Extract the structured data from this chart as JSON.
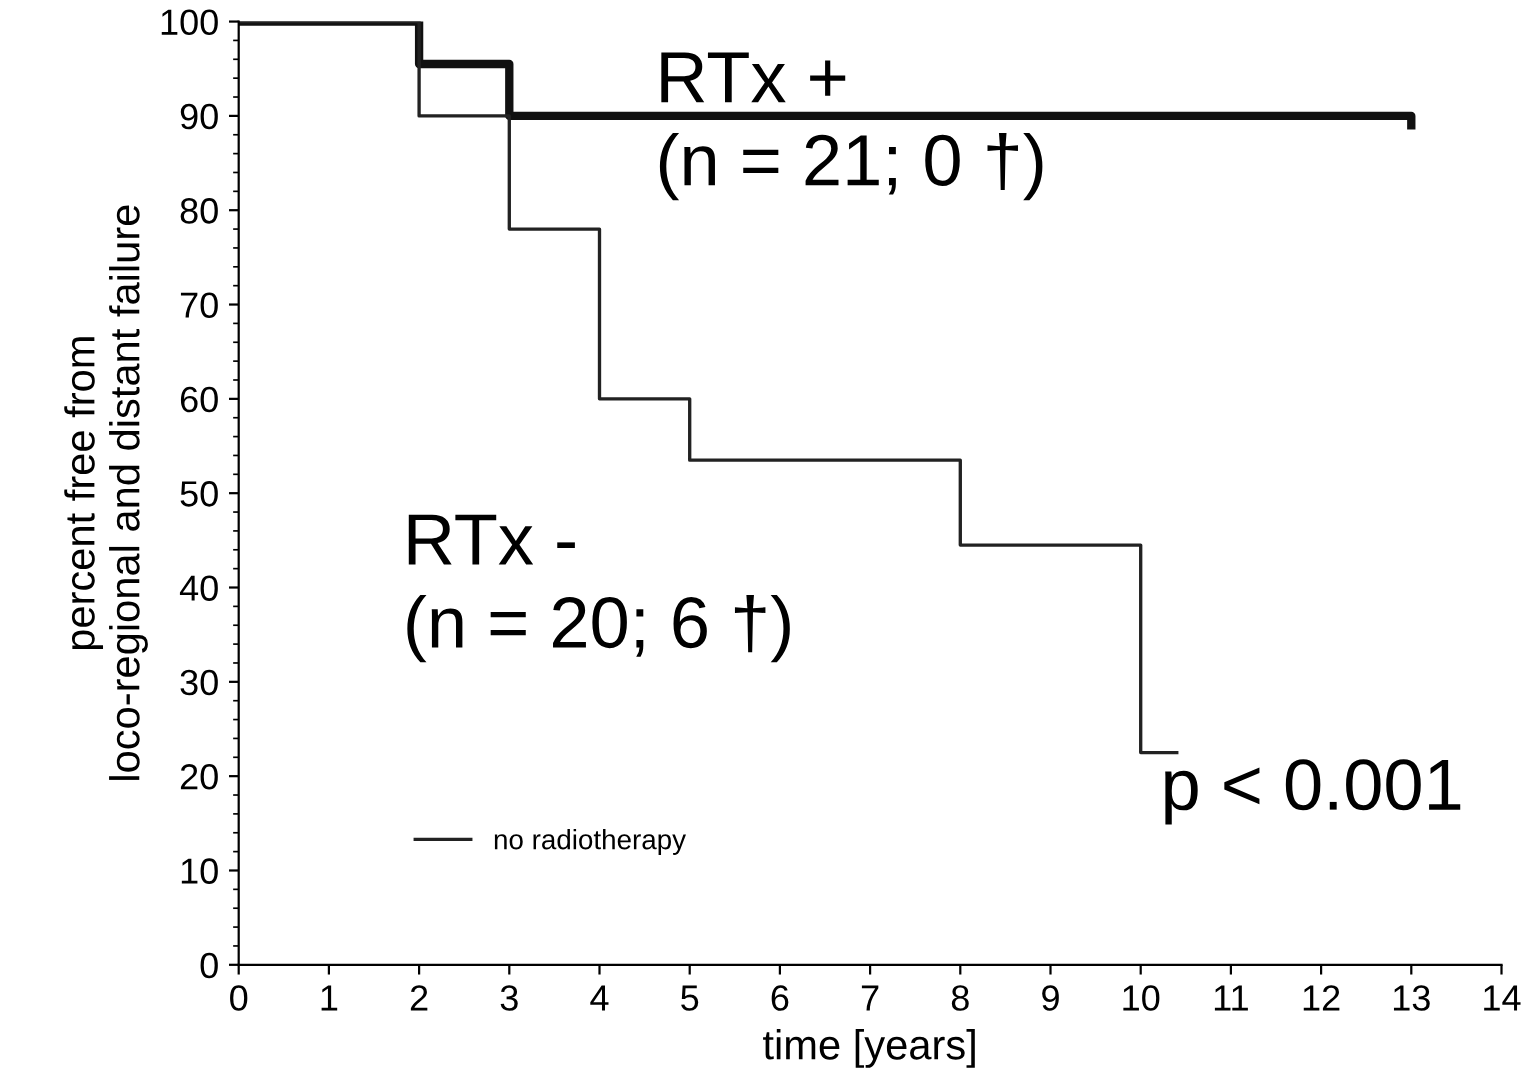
{
  "chart_data": {
    "type": "step",
    "xlabel": "time [years]",
    "ylabel": "percent free from\nloco-regional and distant failure",
    "xlim": [
      0,
      14
    ],
    "ylim": [
      0,
      100
    ],
    "xticks": [
      0,
      1,
      2,
      3,
      4,
      5,
      6,
      7,
      8,
      9,
      10,
      11,
      12,
      13,
      14
    ],
    "yticks": [
      0,
      10,
      20,
      30,
      40,
      50,
      60,
      70,
      80,
      90,
      100
    ],
    "series": [
      {
        "color": "#111111",
        "x": [
          0,
          2,
          3,
          10,
          13
        ],
        "values": [
          100,
          95.5,
          90,
          90,
          89
        ]
      },
      {
        "name": "no radiotherapy",
        "color": "#222222",
        "x": [
          0,
          2,
          3,
          4,
          5,
          8,
          10,
          10.4
        ],
        "values": [
          100,
          90,
          78,
          60,
          53.5,
          44.5,
          22.5,
          22.5
        ]
      }
    ],
    "annotations": [
      "RTx +\n(n = 21; 0 †)",
      "RTx -\n(n = 20; 6 †)",
      "p < 0.001"
    ],
    "legend": "bottom left",
    "grid": false
  }
}
